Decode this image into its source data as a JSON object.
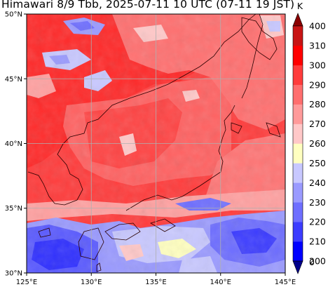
{
  "title": "Himawari 8/9 Tbb, 2025-07-11 10 UTC (07-11 19 JST)",
  "map": {
    "lon_range": [
      125,
      145
    ],
    "lat_range": [
      30,
      50
    ],
    "x_ticks": [
      "125°E",
      "130°E",
      "135°E",
      "140°E",
      "145°E"
    ],
    "y_ticks": [
      "30°N",
      "35°N",
      "40°N",
      "45°N",
      "50°N"
    ],
    "grid": true
  },
  "colorbar": {
    "unit": "K",
    "levels": [
      "200",
      "210",
      "220",
      "230",
      "240",
      "250",
      "260",
      "270",
      "280",
      "290",
      "300",
      "310",
      "400",
      "0"
    ],
    "colors": [
      "#00008b",
      "#0000ff",
      "#3c3cff",
      "#6e6eff",
      "#9a9aff",
      "#c8c8ff",
      "#ffffc0",
      "#ffc8c8",
      "#ff9a9a",
      "#ff6e6e",
      "#ff3c3c",
      "#ff0000",
      "#c81414",
      "#8b0000"
    ]
  }
}
